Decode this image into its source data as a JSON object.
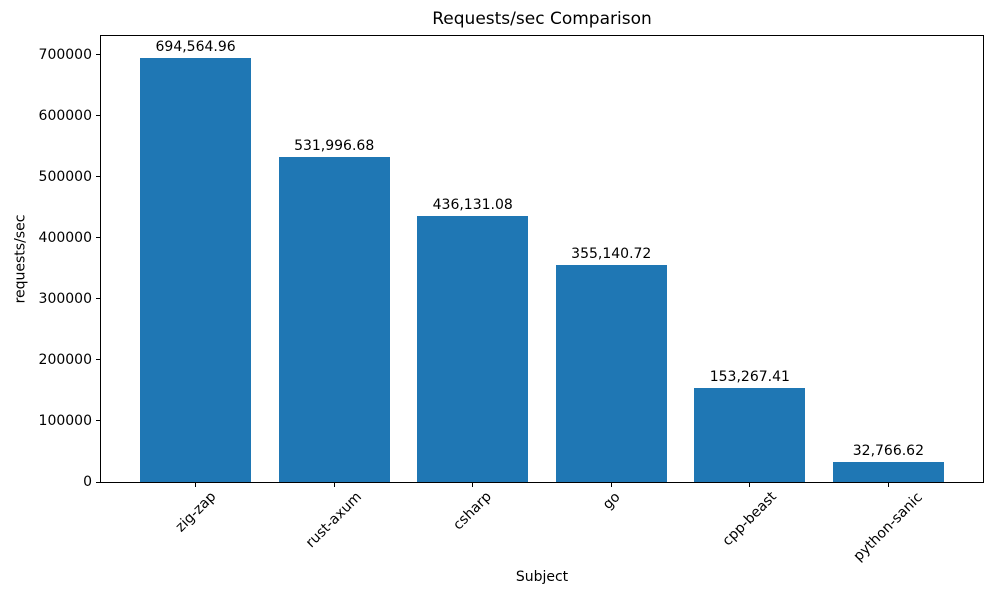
{
  "chart_data": {
    "type": "bar",
    "title": "Requests/sec Comparison",
    "xlabel": "Subject",
    "ylabel": "requests/sec",
    "categories": [
      "zig-zap",
      "rust-axum",
      "csharp",
      "go",
      "cpp-beast",
      "python-sanic"
    ],
    "values": [
      694564.96,
      531996.68,
      436131.08,
      355140.72,
      153267.41,
      32766.62
    ],
    "value_labels": [
      "694,564.96",
      "531,996.68",
      "436,131.08",
      "355,140.72",
      "153,267.41",
      "32,766.62"
    ],
    "yticks": [
      0,
      100000,
      200000,
      300000,
      400000,
      500000,
      600000,
      700000
    ],
    "ytick_labels": [
      "0",
      "100000",
      "200000",
      "300000",
      "400000",
      "500000",
      "600000",
      "700000"
    ],
    "ylim": [
      0,
      732700
    ],
    "xlim": [
      -0.69,
      5.69
    ],
    "bar_width": 0.8,
    "bar_color": "#1f77b4",
    "grid": false,
    "legend": null,
    "xtick_rotation": 45,
    "background_color": "#ffffff",
    "spine_color": "#000000"
  }
}
